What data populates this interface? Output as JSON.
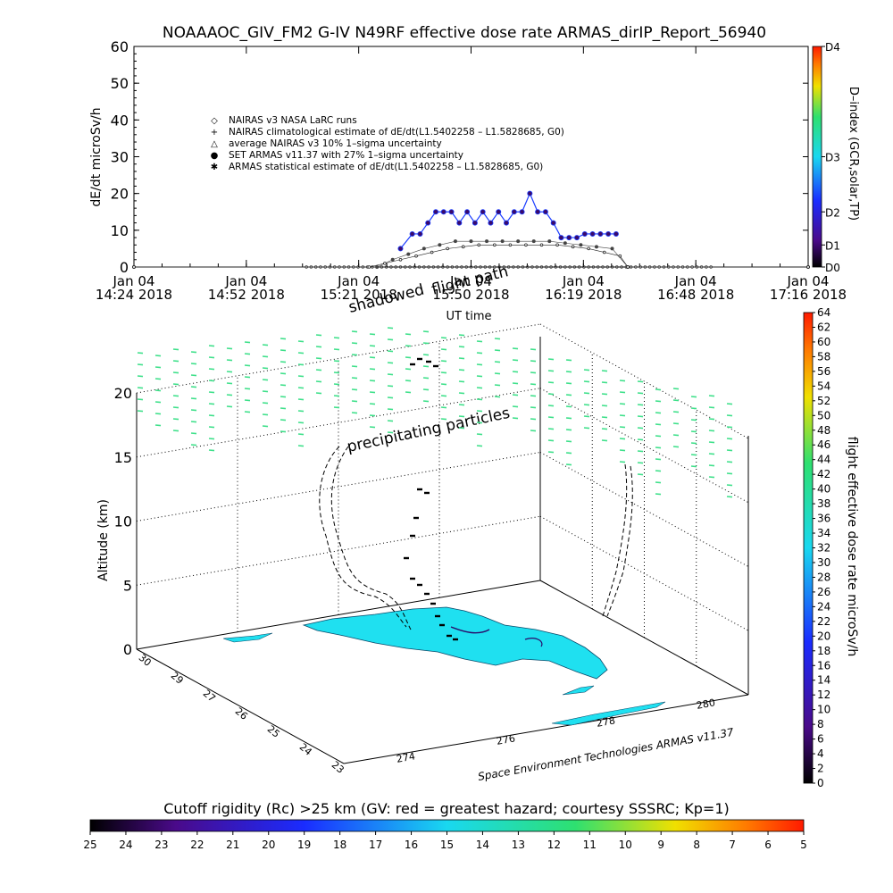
{
  "colors": {
    "dose_blue": "#1a3cff",
    "nairas_purple": "#3a0a6a",
    "land_cyan": "#1fe0f0",
    "particle_green": "#3ee08a",
    "track_black": "#000000"
  },
  "chart_data": [
    {
      "type": "line",
      "title": "NOAAAOC_GIV_FM2 G-IV    N49RF   effective dose rate ARMAS_dirIP_Report_56940",
      "xlabel": "UT time",
      "ylabel": "dE/dt microSv/h",
      "ylim": [
        0,
        60
      ],
      "yticks": [
        "0",
        "10",
        "20",
        "30",
        "40",
        "50",
        "60"
      ],
      "xtick_labels": [
        [
          "Jan 04",
          "14:24 2018"
        ],
        [
          "Jan 04",
          "14:52 2018"
        ],
        [
          "Jan 04",
          "15:21 2018"
        ],
        [
          "Jan 04",
          "15:50 2018"
        ],
        [
          "Jan 04",
          "16:19 2018"
        ],
        [
          "Jan 04",
          "16:48 2018"
        ],
        [
          "Jan 04",
          "17:16 2018"
        ]
      ],
      "xlim_minutes_after_1424": [
        0,
        172
      ],
      "annotation_shadowed": "shadowed",
      "annotation_flight": "flight path",
      "legend": [
        "NAIRAS v3 NASA LaRC runs",
        "NAIRAS climatological estimate of dE/dt(L1.5402258 – L1.5828685, G0)",
        "average NAIRAS v3 10% 1–sigma uncertainty",
        "SET ARMAS v11.37 with 27% 1–sigma uncertainty",
        "ARMAS statistical estimate of dE/dt(L1.5402258 – L1.5828685, G0)"
      ],
      "right_axis": {
        "label": "D–index (GCR,solar,TP)",
        "ticks": [
          "D0",
          "D1",
          "D2",
          "D3",
          "D4"
        ]
      },
      "series": [
        {
          "name": "SET ARMAS v11.37 with 27% 1–sigma uncertainty",
          "x_minutes_after_1424": [
            68,
            71,
            73,
            75,
            77,
            79,
            81,
            83,
            85,
            87,
            89,
            91,
            93,
            95,
            97,
            99,
            101,
            103,
            105,
            107,
            109,
            111,
            113,
            115,
            117,
            119,
            121,
            123
          ],
          "values": [
            5,
            9,
            9,
            12,
            15,
            15,
            15,
            12,
            15,
            12,
            15,
            12,
            15,
            12,
            15,
            15,
            20,
            15,
            15,
            12,
            8,
            8,
            8,
            9,
            9,
            9,
            9,
            9
          ]
        },
        {
          "name": "NAIRAS climatological estimate of dE/dt(L1.5402258 – L1.5828685, G0)",
          "x_minutes_after_1424": [
            0,
            60,
            64,
            68,
            72,
            76,
            80,
            84,
            88,
            92,
            96,
            100,
            104,
            108,
            112,
            116,
            120,
            124,
            126,
            172
          ],
          "values": [
            0,
            0,
            1,
            2,
            3,
            4,
            5,
            5.5,
            6,
            6,
            6,
            6,
            6,
            6,
            5.5,
            5,
            4,
            3,
            0,
            0
          ]
        },
        {
          "name": "ARMAS statistical estimate of dE/dt(L1.5402258 – L1.5828685, G0)",
          "x_minutes_after_1424": [
            0,
            62,
            66,
            70,
            74,
            78,
            82,
            86,
            90,
            94,
            98,
            102,
            106,
            110,
            114,
            118,
            122,
            126,
            172
          ],
          "values": [
            0,
            0,
            2,
            3.5,
            5,
            6,
            7,
            7,
            7,
            7,
            7,
            7,
            7,
            6.5,
            6,
            5.5,
            5,
            0,
            0
          ]
        }
      ]
    },
    {
      "type": "scatter",
      "title": "",
      "zlabel": "Altitude (km)",
      "zticks": [
        "0",
        "5",
        "10",
        "15",
        "20"
      ],
      "lat_ticks": [
        "30",
        "29",
        "27",
        "26",
        "25",
        "24",
        "23"
      ],
      "lon_ticks": [
        "274",
        "276",
        "278",
        "280"
      ],
      "annotation": "precipitating particles",
      "credit": "Space Environment Technologies ARMAS v11.37",
      "colorbar_label": "flight effective dose rate microSv/h",
      "colorbar_ticks": [
        "0",
        "2",
        "4",
        "6",
        "8",
        "10",
        "12",
        "14",
        "16",
        "18",
        "20",
        "22",
        "24",
        "26",
        "28",
        "30",
        "32",
        "34",
        "36",
        "38",
        "40",
        "42",
        "44",
        "46",
        "48",
        "50",
        "52",
        "54",
        "56",
        "58",
        "60",
        "62",
        "64"
      ]
    },
    {
      "type": "heatmap",
      "title": "Cutoff rigidity (Rc) >25 km (GV: red = greatest hazard; courtesy SSSRC; Kp=1)",
      "ticks": [
        "25",
        "24",
        "23",
        "22",
        "21",
        "20",
        "19",
        "18",
        "17",
        "16",
        "15",
        "14",
        "13",
        "12",
        "11",
        "10",
        "9",
        "8",
        "7",
        "6",
        "5"
      ]
    }
  ]
}
